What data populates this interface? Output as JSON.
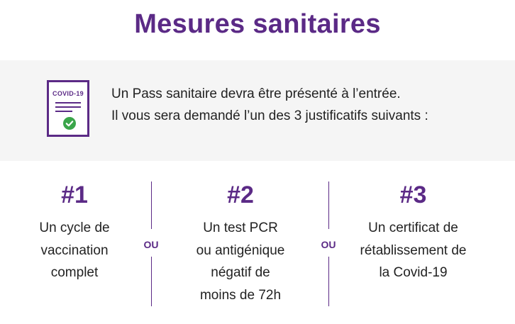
{
  "title": "Mesures sanitaires",
  "colors": {
    "accent": "#5b2a86",
    "check": "#3aa54a",
    "banner_bg": "#f5f5f5"
  },
  "banner": {
    "icon": {
      "name": "covid-pass-document-icon",
      "label": "COVID-19"
    },
    "line1": "Un Pass sanitaire devra être présenté à l’entrée.",
    "line2": "Il vous sera demandé l’un des 3 justificatifs suivants :"
  },
  "options": [
    {
      "number": "#1",
      "lines": [
        "Un cycle de",
        "vaccination",
        "complet"
      ]
    },
    {
      "number": "#2",
      "lines": [
        "Un test PCR",
        "ou antigénique",
        "négatif de",
        "moins de 72h"
      ]
    },
    {
      "number": "#3",
      "lines": [
        "Un certificat de",
        "rétablissement de",
        "la Covid-19"
      ]
    }
  ],
  "separator_word": "OU"
}
